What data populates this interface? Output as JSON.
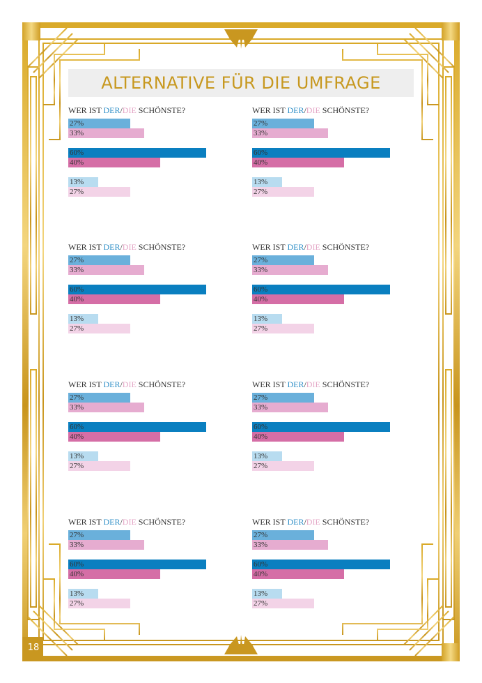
{
  "page": {
    "title": "ALTERNATIVE FÜR DIE UMFRAGE",
    "page_number": "18"
  },
  "colors": {
    "gold": "#c7981f",
    "gold_light": "#f1d27a",
    "der_text": "#2f8fc7",
    "die_text": "#e4a6c6",
    "bar_blue_1": "#6ab0db",
    "bar_blue_2": "#0a7fc0",
    "bar_blue_3": "#b8dcf0",
    "bar_pink_1": "#e6acd0",
    "bar_pink_2": "#d56ea6",
    "bar_pink_3": "#f3d3e7"
  },
  "polls": [
    {
      "question": {
        "prefix": "WER IST ",
        "der": "DER",
        "sep": "/",
        "die": "DIE",
        "suffix": " SCHÖNSTE?"
      },
      "pairs": [
        {
          "der_value": 27,
          "der_label": "27%",
          "die_value": 33,
          "die_label": "33%"
        },
        {
          "der_value": 60,
          "der_label": "60%",
          "die_value": 40,
          "die_label": "40%"
        },
        {
          "der_value": 13,
          "der_label": "13%",
          "die_value": 27,
          "die_label": "27%"
        }
      ]
    },
    {
      "question": {
        "prefix": "WER IST ",
        "der": "DER",
        "sep": "/",
        "die": "DIE",
        "suffix": " SCHÖNSTE?"
      },
      "pairs": [
        {
          "der_value": 27,
          "der_label": "27%",
          "die_value": 33,
          "die_label": "33%"
        },
        {
          "der_value": 60,
          "der_label": "60%",
          "die_value": 40,
          "die_label": "40%"
        },
        {
          "der_value": 13,
          "der_label": "13%",
          "die_value": 27,
          "die_label": "27%"
        }
      ]
    },
    {
      "question": {
        "prefix": "WER IST ",
        "der": "DER",
        "sep": "/",
        "die": "DIE",
        "suffix": " SCHÖNSTE?"
      },
      "pairs": [
        {
          "der_value": 27,
          "der_label": "27%",
          "die_value": 33,
          "die_label": "33%"
        },
        {
          "der_value": 60,
          "der_label": "60%",
          "die_value": 40,
          "die_label": "40%"
        },
        {
          "der_value": 13,
          "der_label": "13%",
          "die_value": 27,
          "die_label": "27%"
        }
      ]
    },
    {
      "question": {
        "prefix": "WER IST ",
        "der": "DER",
        "sep": "/",
        "die": "DIE",
        "suffix": " SCHÖNSTE?"
      },
      "pairs": [
        {
          "der_value": 27,
          "der_label": "27%",
          "die_value": 33,
          "die_label": "33%"
        },
        {
          "der_value": 60,
          "der_label": "60%",
          "die_value": 40,
          "die_label": "40%"
        },
        {
          "der_value": 13,
          "der_label": "13%",
          "die_value": 27,
          "die_label": "27%"
        }
      ]
    },
    {
      "question": {
        "prefix": "WER IST ",
        "der": "DER",
        "sep": "/",
        "die": "DIE",
        "suffix": " SCHÖNSTE?"
      },
      "pairs": [
        {
          "der_value": 27,
          "der_label": "27%",
          "die_value": 33,
          "die_label": "33%"
        },
        {
          "der_value": 60,
          "der_label": "60%",
          "die_value": 40,
          "die_label": "40%"
        },
        {
          "der_value": 13,
          "der_label": "13%",
          "die_value": 27,
          "die_label": "27%"
        }
      ]
    },
    {
      "question": {
        "prefix": "WER IST ",
        "der": "DER",
        "sep": "/",
        "die": "DIE",
        "suffix": " SCHÖNSTE?"
      },
      "pairs": [
        {
          "der_value": 27,
          "der_label": "27%",
          "die_value": 33,
          "die_label": "33%"
        },
        {
          "der_value": 60,
          "der_label": "60%",
          "die_value": 40,
          "die_label": "40%"
        },
        {
          "der_value": 13,
          "der_label": "13%",
          "die_value": 27,
          "die_label": "27%"
        }
      ]
    },
    {
      "question": {
        "prefix": "WER IST ",
        "der": "DER",
        "sep": "/",
        "die": "DIE",
        "suffix": " SCHÖNSTE?"
      },
      "pairs": [
        {
          "der_value": 27,
          "der_label": "27%",
          "die_value": 33,
          "die_label": "33%"
        },
        {
          "der_value": 60,
          "der_label": "60%",
          "die_value": 40,
          "die_label": "40%"
        },
        {
          "der_value": 13,
          "der_label": "13%",
          "die_value": 27,
          "die_label": "27%"
        }
      ]
    },
    {
      "question": {
        "prefix": "WER IST ",
        "der": "DER",
        "sep": "/",
        "die": "DIE",
        "suffix": " SCHÖNSTE?"
      },
      "pairs": [
        {
          "der_value": 27,
          "der_label": "27%",
          "die_value": 33,
          "die_label": "33%"
        },
        {
          "der_value": 60,
          "der_label": "60%",
          "die_value": 40,
          "die_label": "40%"
        },
        {
          "der_value": 13,
          "der_label": "13%",
          "die_value": 27,
          "die_label": "27%"
        }
      ]
    }
  ]
}
